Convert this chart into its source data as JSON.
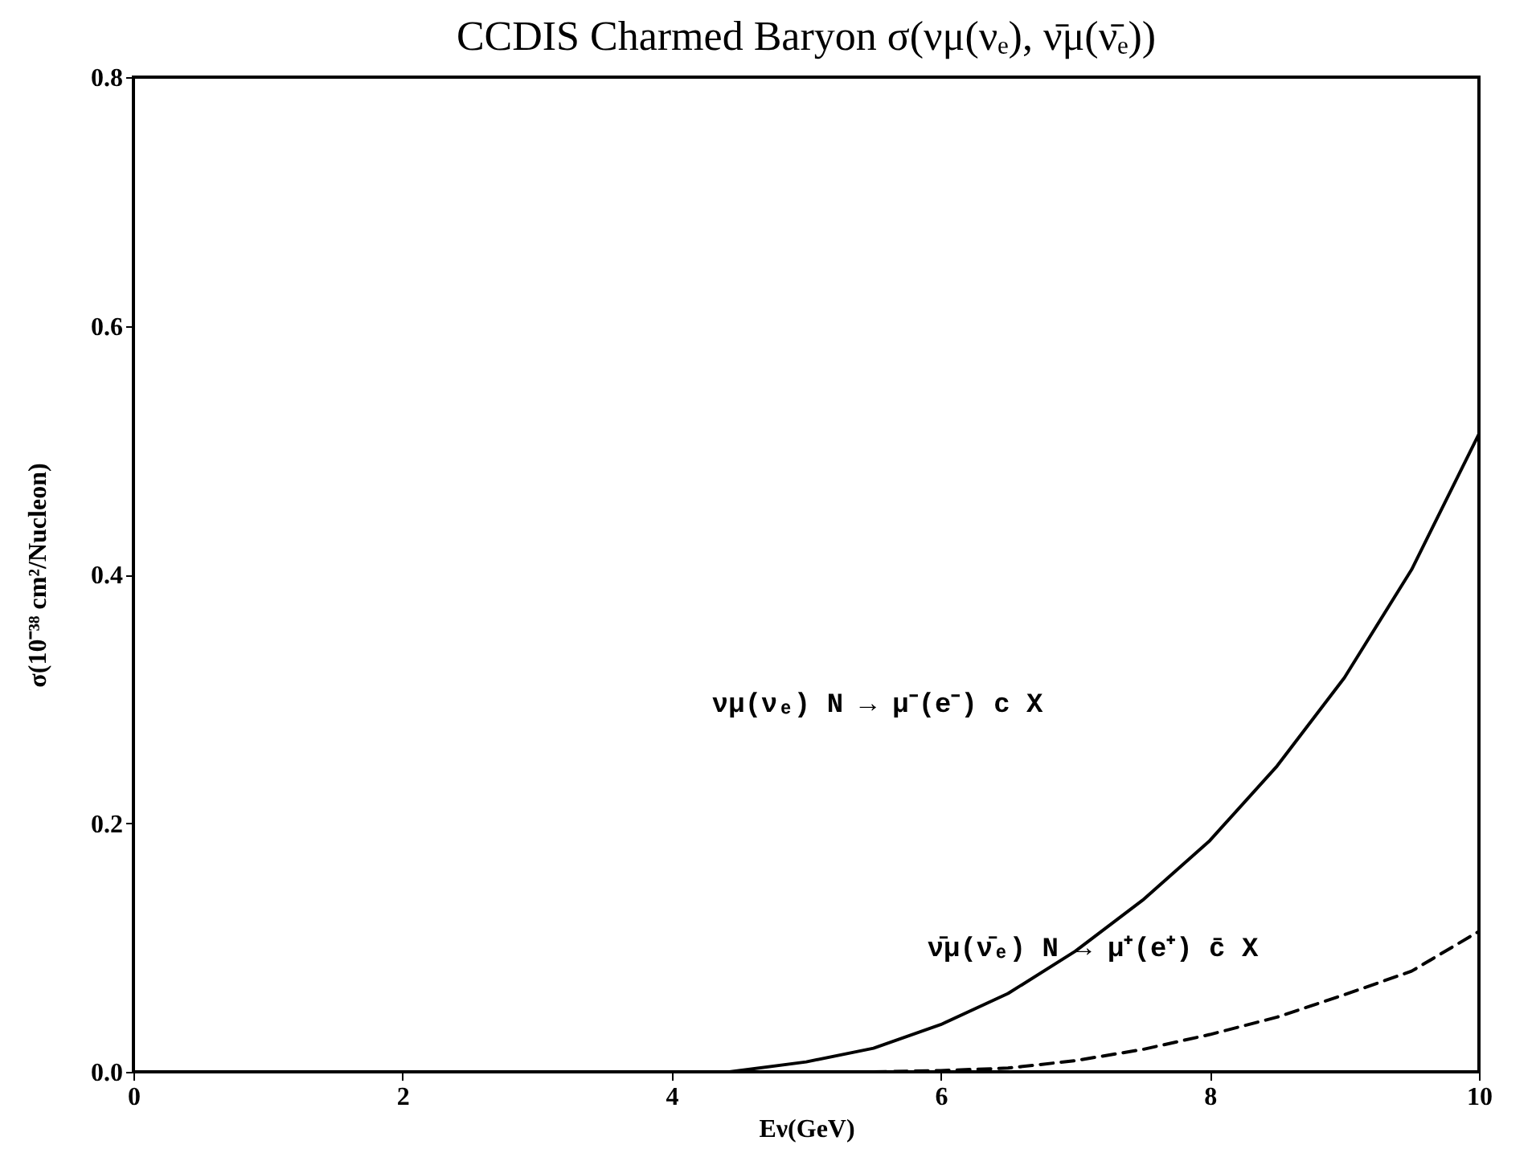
{
  "chart_data": {
    "type": "line",
    "title": "CCDIS Charmed Baryon σ(νμ(νₑ), ν̄μ(ν̄ₑ))",
    "xlabel": "Eν(GeV)",
    "ylabel": "σ(10⁻³⁸ cm²/Nucleon)",
    "xlim": [
      0,
      10
    ],
    "xticks": [
      0,
      2,
      4,
      6,
      8,
      10
    ],
    "ylim": [
      0,
      0.8
    ],
    "yticks": [
      {
        "value": 0,
        "label": "0.0"
      },
      0.2,
      0.4,
      0.6,
      0.8
    ],
    "grid": false,
    "marker": "none",
    "series": [
      {
        "color": "#000000",
        "line_style": "solid",
        "x": [
          4.43,
          5,
          5.5,
          6,
          6.5,
          7,
          7.5,
          8,
          8.5,
          9,
          9.5,
          10
        ],
        "values": [
          0,
          0.008,
          0.019,
          0.038,
          0.063,
          0.097,
          0.138,
          0.186,
          0.246,
          0.317,
          0.404,
          0.513
        ]
      },
      {
        "color": "#000000",
        "line_style": "dashed",
        "x": [
          5.5,
          6,
          6.5,
          7,
          7.5,
          8,
          8.5,
          9,
          9.5,
          10
        ],
        "values": [
          0,
          0.001,
          0.003,
          0.009,
          0.018,
          0.03,
          0.044,
          0.062,
          0.081,
          0.113
        ]
      }
    ],
    "annotations": [
      "νμ(νₑ) N → μ⁻(e⁻) c X",
      "ν̄μ(ν̄ₑ) N → μ⁺(e⁺) c̄ X"
    ]
  }
}
